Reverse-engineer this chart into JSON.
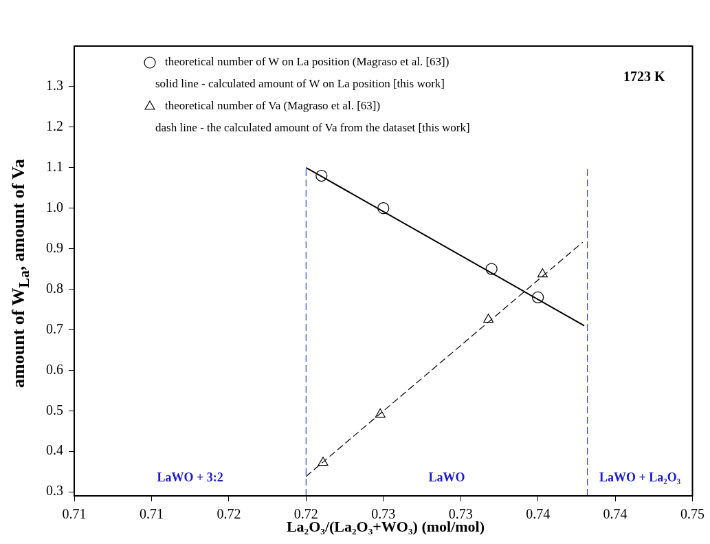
{
  "chart_data": {
    "type": "scatter",
    "xlabel": "La₂O₃/(La₂O₃+WO₃) (mol/mol)",
    "ylabel": "amount of W$_{La}$, amount of Va",
    "xlim": [
      0.71,
      0.75
    ],
    "xticks": [
      {
        "value": 0.71,
        "label": "0.71"
      },
      {
        "value": 0.715,
        "label": "0.71"
      },
      {
        "value": 0.72,
        "label": "0.72"
      },
      {
        "value": 0.725,
        "label": "0.72"
      },
      {
        "value": 0.73,
        "label": "0.73"
      },
      {
        "value": 0.735,
        "label": "0.73"
      },
      {
        "value": 0.74,
        "label": "0.74"
      },
      {
        "value": 0.745,
        "label": "0.74"
      },
      {
        "value": 0.75,
        "label": "0.75"
      }
    ],
    "ylim": [
      0.29,
      1.4
    ],
    "yticks": [
      0.3,
      0.4,
      0.5,
      0.6,
      0.7,
      0.8,
      0.9,
      {
        "value": 1,
        "label": "1.0"
      },
      1.1,
      1.2,
      1.3
    ],
    "grid": false,
    "legend": "top left",
    "series": [
      {
        "type": "scatter",
        "name": "theoretical number of W on La position (Magraso et al. [63])",
        "color": "#000000",
        "marker": "circle",
        "x": [
          0.726,
          0.73,
          0.737,
          0.74
        ],
        "values": [
          1.08,
          1.0,
          0.85,
          0.78
        ]
      },
      {
        "type": "line",
        "color": "#000000",
        "marker": "none",
        "line_style": "solid",
        "x": [
          0.725,
          0.743
        ],
        "values": [
          1.1,
          0.71
        ]
      },
      {
        "type": "scatter",
        "name": "theoretical number of Va (Magraso et al. [63])",
        "color": "#000000",
        "marker": "triangle",
        "x": [
          0.7261,
          0.7298,
          0.7368,
          0.7403
        ],
        "values": [
          0.372,
          0.491,
          0.725,
          0.837
        ]
      },
      {
        "type": "line",
        "color": "#000000",
        "marker": "none",
        "line_style": "dashed",
        "x": [
          0.725,
          0.7429
        ],
        "values": [
          0.338,
          0.916
        ]
      }
    ],
    "ref_lines": [
      {
        "axis": "x",
        "value": 0.725,
        "label": null,
        "color": "#3344dd",
        "line_style": "dashed"
      },
      {
        "axis": "x",
        "value": 0.7432,
        "label": null,
        "color": "#3344dd",
        "line_style": "dashed"
      }
    ],
    "annotations": [
      "solid line - calculated amount of W on La position [this work]",
      "dash line - the calculated amount of Va from the dataset [this work]",
      "1723 K",
      "LaWO + 3:2",
      "LaWO",
      "LaWO + La₂O₃"
    ]
  }
}
